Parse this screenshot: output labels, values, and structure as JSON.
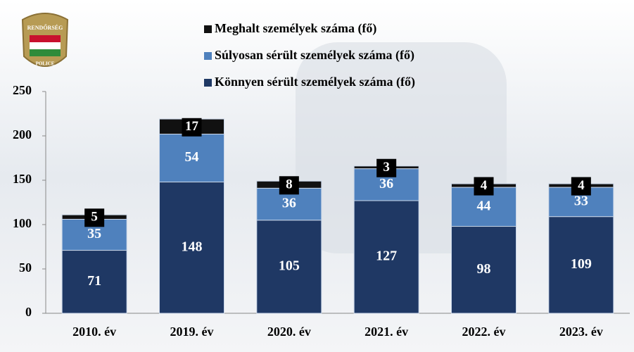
{
  "chart_data": {
    "type": "stacked-bar",
    "categories": [
      "2010. év",
      "2019. év",
      "2020. év",
      "2021. év",
      "2022. év",
      "2023. év"
    ],
    "series": [
      {
        "name": "Könnyen sérült személyek száma (fő)",
        "color": "#1f3864",
        "values": [
          71,
          148,
          105,
          127,
          98,
          109
        ]
      },
      {
        "name": "Súlyosan sérült személyek száma (fő)",
        "color": "#4f81bd",
        "values": [
          35,
          54,
          36,
          36,
          44,
          33
        ]
      },
      {
        "name": "Meghalt személyek száma (fő)",
        "color": "#111111",
        "values": [
          5,
          17,
          8,
          3,
          4,
          4
        ]
      }
    ],
    "ylim": [
      0,
      250
    ],
    "yticks": [
      0,
      50,
      100,
      150,
      200,
      250
    ]
  },
  "logo": {
    "top": "RENDŐRSÉG",
    "bottom": "POLICE"
  }
}
